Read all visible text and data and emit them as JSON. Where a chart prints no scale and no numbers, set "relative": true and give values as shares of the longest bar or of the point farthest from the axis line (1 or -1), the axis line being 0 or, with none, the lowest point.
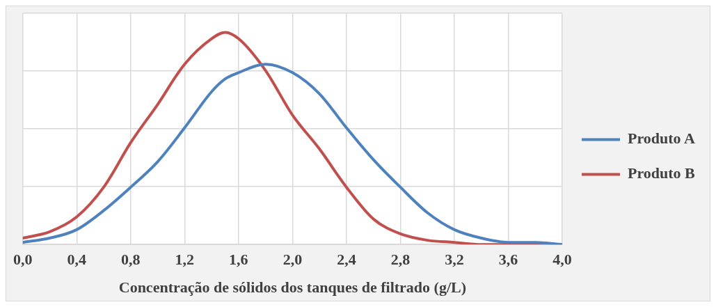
{
  "chart_data": {
    "type": "line",
    "xlabel": "Concentração de sólidos dos tanques de filtrado (g/L)",
    "relative": true,
    "grid": true,
    "legend": "right",
    "line_style": "solid",
    "marker": "none",
    "x": [
      0,
      0.2,
      0.4,
      0.6,
      0.8,
      1.0,
      1.2,
      1.4,
      1.5,
      1.6,
      1.8,
      2.0,
      2.2,
      2.4,
      2.6,
      2.8,
      3.0,
      3.2,
      3.4,
      3.6,
      3.8,
      4.0
    ],
    "xlim": [
      0,
      4
    ],
    "xticks": [
      {
        "value": 0,
        "label": "0,0"
      },
      {
        "value": 0.4,
        "label": "0,4"
      },
      {
        "value": 0.8,
        "label": "0,8"
      },
      {
        "value": 1.2,
        "label": "1,2"
      },
      {
        "value": 1.6,
        "label": "1,6"
      },
      {
        "value": 2.0,
        "label": "2,0"
      },
      {
        "value": 2.4,
        "label": "2,4"
      },
      {
        "value": 2.8,
        "label": "2,8"
      },
      {
        "value": 3.2,
        "label": "3,2"
      },
      {
        "value": 3.6,
        "label": "3,6"
      },
      {
        "value": 4.0,
        "label": "4,0"
      }
    ],
    "series": [
      {
        "name": "Produto A",
        "color": "#4f81bd",
        "values": [
          0.01,
          0.03,
          0.07,
          0.16,
          0.27,
          0.39,
          0.55,
          0.72,
          0.78,
          0.81,
          0.85,
          0.81,
          0.71,
          0.55,
          0.4,
          0.27,
          0.15,
          0.07,
          0.03,
          0.01,
          0.01,
          0
        ]
      },
      {
        "name": "Produto B",
        "color": "#c0504d",
        "values": [
          0.03,
          0.06,
          0.13,
          0.27,
          0.48,
          0.66,
          0.85,
          0.97,
          1,
          0.97,
          0.82,
          0.61,
          0.45,
          0.27,
          0.12,
          0.05,
          0.02,
          0.01,
          0,
          0,
          0,
          0
        ]
      }
    ]
  }
}
